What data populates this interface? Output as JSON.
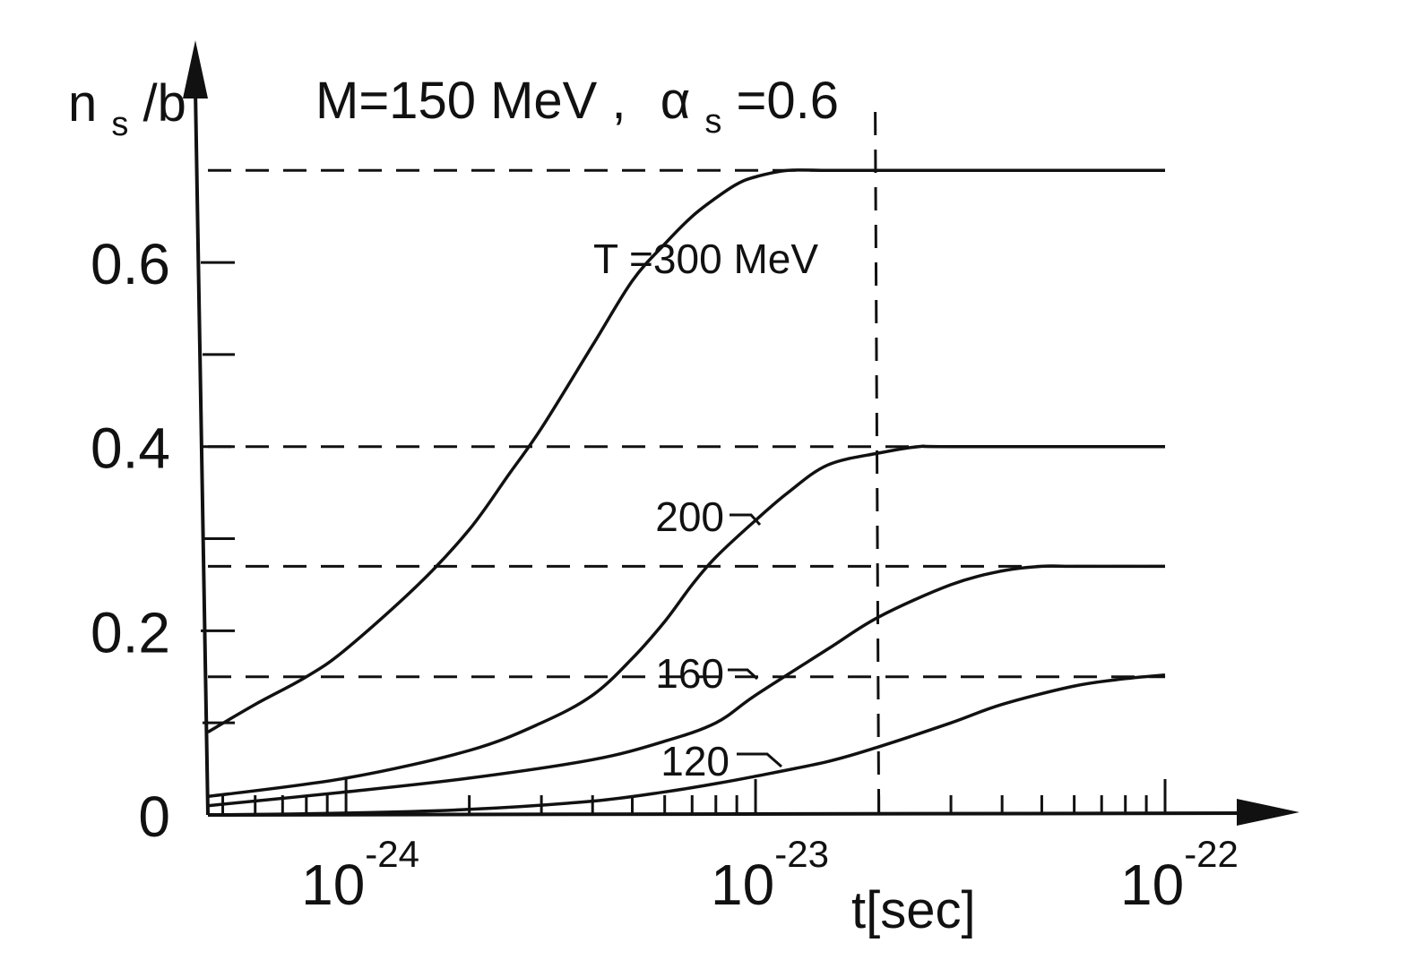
{
  "chart_data": {
    "type": "line",
    "title": "M=150 MeV , α_s=0.6",
    "title_parts": {
      "mass": "M=150 MeV ,",
      "alpha_sym": "α",
      "alpha_sub": "s",
      "alpha_val": "=0.6"
    },
    "ylabel": "n_s/b",
    "ylabel_parts": {
      "n": "n",
      "sub": "s",
      "rest": "/b"
    },
    "xlabel": "t[sec]",
    "x_scale": "log",
    "xlim": [
      4.6e-25,
      1e-22
    ],
    "ylim": [
      0,
      0.78
    ],
    "y_ticks": [
      {
        "value": 0,
        "label": "0"
      },
      {
        "value": 0.2,
        "label": "0.2"
      },
      {
        "value": 0.4,
        "label": "0.4"
      },
      {
        "value": 0.6,
        "label": "0.6"
      }
    ],
    "y_minor_ticks": [
      0.1,
      0.3,
      0.5
    ],
    "x_ticks": [
      {
        "value": 1e-24,
        "base": "10",
        "exp": "-24"
      },
      {
        "value": 1e-23,
        "base": "10",
        "exp": "-23"
      },
      {
        "value": 1e-22,
        "base": "10",
        "exp": "-22"
      }
    ],
    "equilibrium_levels": [
      0.7,
      0.4,
      0.27,
      0.15
    ],
    "reference_time": 2e-23,
    "series": [
      {
        "name": "T =300 MeV",
        "label": "T =300 MeV",
        "x": [
          4.6e-25,
          6e-25,
          8e-25,
          1e-24,
          1.5e-24,
          2e-24,
          2.5e-24,
          3e-24,
          4e-24,
          5e-24,
          6e-24,
          7e-24,
          8e-24,
          9e-24,
          1e-23,
          1.2e-23,
          1.5e-23,
          2e-23,
          1e-22
        ],
        "y": [
          0.09,
          0.12,
          0.15,
          0.18,
          0.25,
          0.31,
          0.37,
          0.42,
          0.51,
          0.58,
          0.62,
          0.65,
          0.67,
          0.685,
          0.693,
          0.7,
          0.7,
          0.7,
          0.7
        ]
      },
      {
        "name": "200",
        "label": "200",
        "x": [
          4.6e-25,
          1e-24,
          2e-24,
          3e-24,
          4e-24,
          5e-24,
          6e-24,
          7e-24,
          8e-24,
          1e-23,
          1.2e-23,
          1.5e-23,
          2e-23,
          2.5e-23,
          3e-23,
          1e-22
        ],
        "y": [
          0.02,
          0.04,
          0.07,
          0.1,
          0.13,
          0.17,
          0.21,
          0.25,
          0.28,
          0.32,
          0.35,
          0.38,
          0.393,
          0.4,
          0.4,
          0.4
        ]
      },
      {
        "name": "160",
        "label": "160",
        "x": [
          4.6e-25,
          1e-24,
          2e-24,
          4e-24,
          6e-24,
          8e-24,
          1e-23,
          1.5e-23,
          2e-23,
          3e-23,
          4e-23,
          5e-23,
          6e-23,
          1e-22
        ],
        "y": [
          0.01,
          0.025,
          0.04,
          0.06,
          0.08,
          0.1,
          0.13,
          0.18,
          0.215,
          0.25,
          0.265,
          0.27,
          0.27,
          0.27
        ]
      },
      {
        "name": "120",
        "label": "120",
        "x": [
          4.6e-25,
          1e-24,
          2e-24,
          4e-24,
          6e-24,
          8e-24,
          1e-23,
          1.5e-23,
          2e-23,
          3e-23,
          4e-23,
          6e-23,
          8e-23,
          1e-22
        ],
        "y": [
          0.0,
          0.002,
          0.006,
          0.015,
          0.025,
          0.034,
          0.042,
          0.058,
          0.074,
          0.1,
          0.12,
          0.14,
          0.148,
          0.152
        ]
      }
    ]
  }
}
